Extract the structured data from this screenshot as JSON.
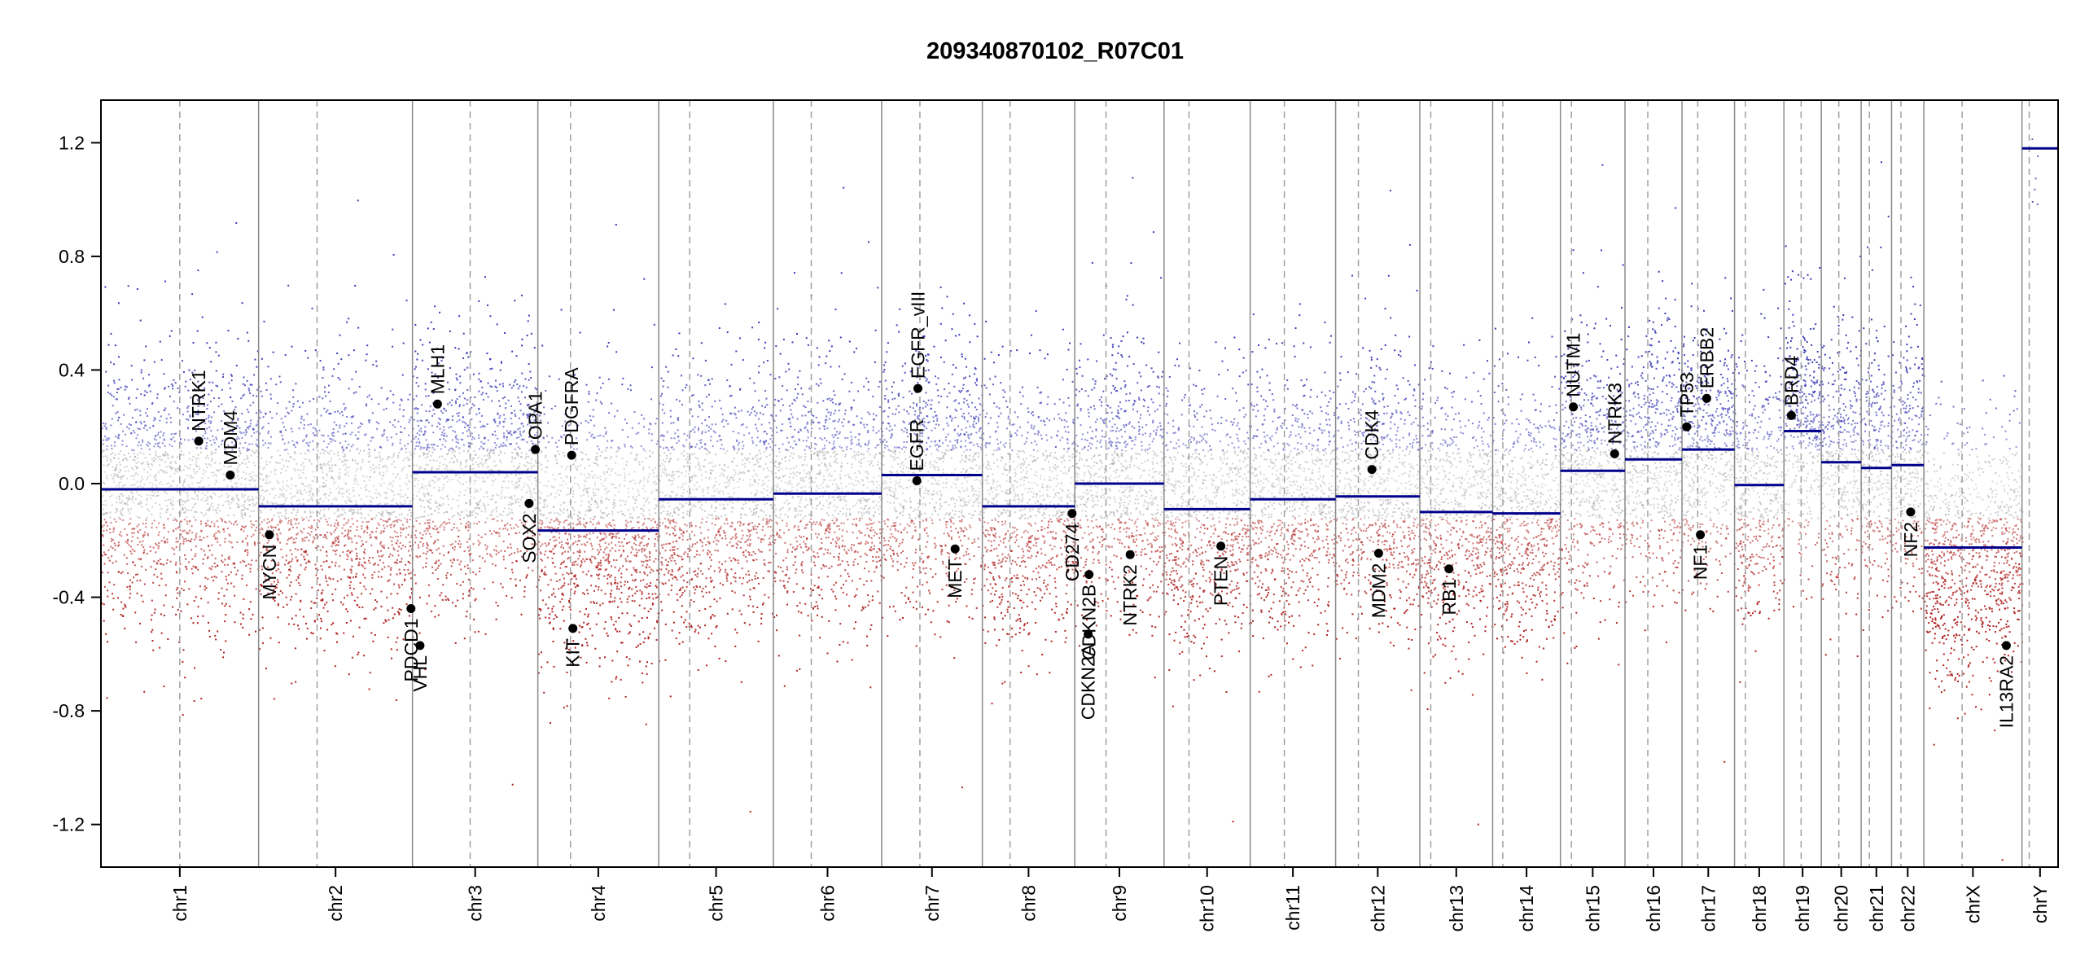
{
  "chart_data": {
    "type": "scatter",
    "title": "209340870102_R07C01",
    "xlabel": "",
    "ylabel": "",
    "ylim": [
      -1.35,
      1.35
    ],
    "yticks": [
      "-1.2",
      "-0.8",
      "-0.4",
      "0.0",
      "0.4",
      "0.8",
      "1.2"
    ],
    "ytick_values": [
      -1.2,
      -0.8,
      -0.4,
      0.0,
      0.4,
      0.8,
      1.2
    ],
    "grid": false,
    "chromosomes": [
      {
        "name": "chr1",
        "size": 249,
        "centromere": 0.5,
        "segment": -0.02
      },
      {
        "name": "chr2",
        "size": 243,
        "centromere": 0.38,
        "segment": -0.08
      },
      {
        "name": "chr3",
        "size": 198,
        "centromere": 0.46,
        "segment": 0.04
      },
      {
        "name": "chr4",
        "size": 191,
        "centromere": 0.27,
        "segment": -0.165
      },
      {
        "name": "chr5",
        "size": 181,
        "centromere": 0.27,
        "segment": -0.055
      },
      {
        "name": "chr6",
        "size": 171,
        "centromere": 0.35,
        "segment": -0.035
      },
      {
        "name": "chr7",
        "size": 159,
        "centromere": 0.38,
        "segment": 0.03
      },
      {
        "name": "chr8",
        "size": 146,
        "centromere": 0.3,
        "segment": -0.08
      },
      {
        "name": "chr9",
        "size": 141,
        "centromere": 0.35,
        "segment": 0.0
      },
      {
        "name": "chr10",
        "size": 136,
        "centromere": 0.29,
        "segment": -0.09
      },
      {
        "name": "chr11",
        "size": 135,
        "centromere": 0.4,
        "segment": -0.055
      },
      {
        "name": "chr12",
        "size": 133,
        "centromere": 0.27,
        "segment": -0.045
      },
      {
        "name": "chr13",
        "size": 115,
        "centromere": 0.15,
        "segment": -0.1
      },
      {
        "name": "chr14",
        "size": 107,
        "centromere": 0.15,
        "segment": -0.105
      },
      {
        "name": "chr15",
        "size": 102,
        "centromere": 0.17,
        "segment": 0.045
      },
      {
        "name": "chr16",
        "size": 90,
        "centromere": 0.4,
        "segment": 0.085
      },
      {
        "name": "chr17",
        "size": 83,
        "centromere": 0.3,
        "segment": 0.12
      },
      {
        "name": "chr18",
        "size": 78,
        "centromere": 0.22,
        "segment": -0.005
      },
      {
        "name": "chr19",
        "size": 59,
        "centromere": 0.46,
        "segment": 0.185
      },
      {
        "name": "chr20",
        "size": 63,
        "centromere": 0.44,
        "segment": 0.075
      },
      {
        "name": "chr21",
        "size": 48,
        "centromere": 0.27,
        "segment": 0.055
      },
      {
        "name": "chr22",
        "size": 51,
        "centromere": 0.29,
        "segment": 0.065
      },
      {
        "name": "chrX",
        "size": 155,
        "centromere": 0.39,
        "segment": -0.225
      },
      {
        "name": "chrY",
        "size": 57,
        "centromere": 0.2,
        "segment": 1.18
      }
    ],
    "genes": [
      {
        "name": "NTRK1",
        "chr": "chr1",
        "pos": 0.62,
        "value": 0.15,
        "side": "up"
      },
      {
        "name": "MDM4",
        "chr": "chr1",
        "pos": 0.82,
        "value": 0.03,
        "side": "up"
      },
      {
        "name": "MYCN",
        "chr": "chr2",
        "pos": 0.07,
        "value": -0.18,
        "side": "down"
      },
      {
        "name": "VHL",
        "chr": "chr3",
        "pos": 0.06,
        "value": -0.57,
        "side": "down"
      },
      {
        "name": "PDCD1",
        "chr": "chr2",
        "pos": 0.99,
        "value": -0.44,
        "side": "down"
      },
      {
        "name": "MLH1",
        "chr": "chr3",
        "pos": 0.2,
        "value": 0.28,
        "side": "up"
      },
      {
        "name": "SOX2",
        "chr": "chr3",
        "pos": 0.93,
        "value": -0.07,
        "side": "down"
      },
      {
        "name": "OPA1",
        "chr": "chr3",
        "pos": 0.98,
        "value": 0.12,
        "side": "up"
      },
      {
        "name": "PDGFRA",
        "chr": "chr4",
        "pos": 0.28,
        "value": 0.1,
        "side": "up"
      },
      {
        "name": "KIT",
        "chr": "chr4",
        "pos": 0.29,
        "value": -0.51,
        "side": "down"
      },
      {
        "name": "EGFR",
        "chr": "chr7",
        "pos": 0.35,
        "value": 0.01,
        "side": "up"
      },
      {
        "name": "EGFR_vIII",
        "chr": "chr7",
        "pos": 0.36,
        "value": 0.335,
        "side": "up"
      },
      {
        "name": "MET",
        "chr": "chr7",
        "pos": 0.73,
        "value": -0.23,
        "side": "down"
      },
      {
        "name": "CD274",
        "chr": "chr8",
        "pos": 0.97,
        "value": -0.105,
        "side": "down"
      },
      {
        "name": "CDKN2B",
        "chr": "chr9",
        "pos": 0.16,
        "value": -0.32,
        "side": "down"
      },
      {
        "name": "CDKN2A",
        "chr": "chr9",
        "pos": 0.15,
        "value": -0.53,
        "side": "down"
      },
      {
        "name": "NTRK2",
        "chr": "chr9",
        "pos": 0.62,
        "value": -0.25,
        "side": "down"
      },
      {
        "name": "PTEN",
        "chr": "chr10",
        "pos": 0.66,
        "value": -0.22,
        "side": "down"
      },
      {
        "name": "CDK4",
        "chr": "chr12",
        "pos": 0.43,
        "value": 0.05,
        "side": "up"
      },
      {
        "name": "MDM2",
        "chr": "chr12",
        "pos": 0.51,
        "value": -0.245,
        "side": "down"
      },
      {
        "name": "RB1",
        "chr": "chr13",
        "pos": 0.4,
        "value": -0.3,
        "side": "down"
      },
      {
        "name": "NUTM1",
        "chr": "chr15",
        "pos": 0.2,
        "value": 0.27,
        "side": "up"
      },
      {
        "name": "NTRK3",
        "chr": "chr15",
        "pos": 0.84,
        "value": 0.105,
        "side": "up"
      },
      {
        "name": "TP53",
        "chr": "chr17",
        "pos": 0.09,
        "value": 0.2,
        "side": "up"
      },
      {
        "name": "NF1",
        "chr": "chr17",
        "pos": 0.35,
        "value": -0.18,
        "side": "down"
      },
      {
        "name": "ERBB2",
        "chr": "chr17",
        "pos": 0.47,
        "value": 0.3,
        "side": "up"
      },
      {
        "name": "BRD4",
        "chr": "chr19",
        "pos": 0.2,
        "value": 0.24,
        "side": "up"
      },
      {
        "name": "NF2",
        "chr": "chr22",
        "pos": 0.59,
        "value": -0.1,
        "side": "down"
      },
      {
        "name": "IL13RA2",
        "chr": "chrX",
        "pos": 0.84,
        "value": -0.57,
        "side": "down"
      }
    ],
    "series": [
      {
        "name": "",
        "color_gain": "#3b3bb8",
        "color_loss": "#b02020",
        "color_neutral": "#9a9a9a",
        "segment_color": "#00008b"
      }
    ]
  }
}
